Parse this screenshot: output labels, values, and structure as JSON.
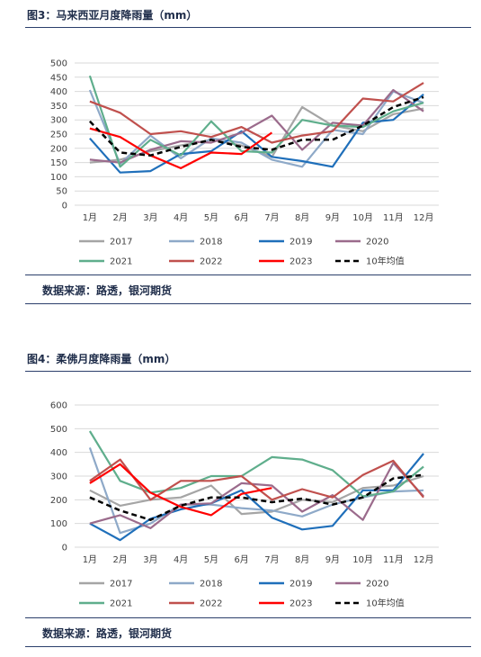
{
  "page": {
    "colors": {
      "navy": "#1f2d4a",
      "rule": "#2b3f6b"
    }
  },
  "figures": [
    {
      "title": "图3：马来西亚月度降雨量（mm）",
      "source": "数据来源：路透，银河期货"
    },
    {
      "title": "图4：柔佛月度降雨量（mm）",
      "source": "数据来源：路透，银河期货"
    }
  ],
  "chart_data": [
    {
      "type": "line",
      "title": "",
      "xlabel": "",
      "ylabel": "",
      "ylim": [
        0,
        500
      ],
      "yticks": [
        0,
        50,
        100,
        150,
        200,
        250,
        300,
        350,
        400,
        450,
        500
      ],
      "grid": true,
      "legend_position": "bottom",
      "categories": [
        "1月",
        "2月",
        "3月",
        "4月",
        "5月",
        "6月",
        "7月",
        "8月",
        "9月",
        "10月",
        "11月",
        "12月"
      ],
      "series": [
        {
          "name": "2017",
          "color": "#a5a5a5",
          "dash": "solid",
          "values": [
            150,
            160,
            190,
            210,
            230,
            210,
            170,
            345,
            280,
            260,
            320,
            340
          ]
        },
        {
          "name": "2018",
          "color": "#8ea9c8",
          "dash": "solid",
          "values": [
            405,
            145,
            245,
            165,
            235,
            220,
            160,
            135,
            265,
            250,
            400,
            360
          ]
        },
        {
          "name": "2019",
          "color": "#1f6fba",
          "dash": "solid",
          "values": [
            235,
            115,
            120,
            180,
            190,
            260,
            170,
            155,
            135,
            290,
            300,
            390
          ]
        },
        {
          "name": "2020",
          "color": "#9b6b8c",
          "dash": "solid",
          "values": [
            160,
            150,
            195,
            225,
            220,
            255,
            315,
            195,
            290,
            280,
            405,
            330
          ]
        },
        {
          "name": "2021",
          "color": "#5fae8c",
          "dash": "solid",
          "values": [
            455,
            135,
            230,
            175,
            295,
            190,
            185,
            300,
            280,
            275,
            330,
            360
          ]
        },
        {
          "name": "2022",
          "color": "#c0504d",
          "dash": "solid",
          "values": [
            365,
            325,
            250,
            260,
            240,
            275,
            220,
            245,
            260,
            375,
            365,
            430
          ]
        },
        {
          "name": "2023",
          "color": "#ff0000",
          "dash": "solid",
          "values": [
            270,
            240,
            175,
            130,
            185,
            180,
            255,
            null,
            null,
            null,
            null,
            null
          ]
        },
        {
          "name": "10年均值",
          "color": "#000000",
          "dash": "dashed",
          "values": [
            295,
            185,
            175,
            205,
            230,
            205,
            195,
            230,
            230,
            280,
            345,
            380
          ]
        }
      ]
    },
    {
      "type": "line",
      "title": "",
      "xlabel": "",
      "ylabel": "",
      "ylim": [
        0,
        600
      ],
      "yticks": [
        0,
        100,
        200,
        300,
        400,
        500,
        600
      ],
      "grid": true,
      "legend_position": "bottom",
      "categories": [
        "1月",
        "2月",
        "3月",
        "4月",
        "5月",
        "6月",
        "7月",
        "8月",
        "9月",
        "10月",
        "11月",
        "12月"
      ],
      "series": [
        {
          "name": "2017",
          "color": "#a5a5a5",
          "dash": "solid",
          "values": [
            240,
            175,
            200,
            210,
            260,
            140,
            150,
            200,
            190,
            250,
            260,
            300
          ]
        },
        {
          "name": "2018",
          "color": "#8ea9c8",
          "dash": "solid",
          "values": [
            420,
            60,
            100,
            180,
            180,
            165,
            155,
            130,
            180,
            210,
            235,
            240
          ]
        },
        {
          "name": "2019",
          "color": "#1f6fba",
          "dash": "solid",
          "values": [
            100,
            30,
            120,
            160,
            185,
            240,
            125,
            75,
            90,
            240,
            240,
            395
          ]
        },
        {
          "name": "2020",
          "color": "#9b6b8c",
          "dash": "solid",
          "values": [
            100,
            135,
            80,
            180,
            185,
            270,
            260,
            150,
            220,
            115,
            355,
            215
          ]
        },
        {
          "name": "2021",
          "color": "#5fae8c",
          "dash": "solid",
          "values": [
            490,
            280,
            230,
            250,
            300,
            300,
            380,
            370,
            325,
            215,
            235,
            340
          ]
        },
        {
          "name": "2022",
          "color": "#c0504d",
          "dash": "solid",
          "values": [
            280,
            370,
            200,
            280,
            280,
            300,
            200,
            245,
            210,
            305,
            365,
            210
          ]
        },
        {
          "name": "2023",
          "color": "#ff0000",
          "dash": "solid",
          "values": [
            270,
            350,
            230,
            170,
            135,
            225,
            250,
            null,
            null,
            null,
            null,
            null
          ]
        },
        {
          "name": "10年均值",
          "color": "#000000",
          "dash": "dashed",
          "values": [
            210,
            155,
            115,
            175,
            210,
            210,
            190,
            205,
            180,
            210,
            290,
            305
          ]
        }
      ]
    }
  ]
}
